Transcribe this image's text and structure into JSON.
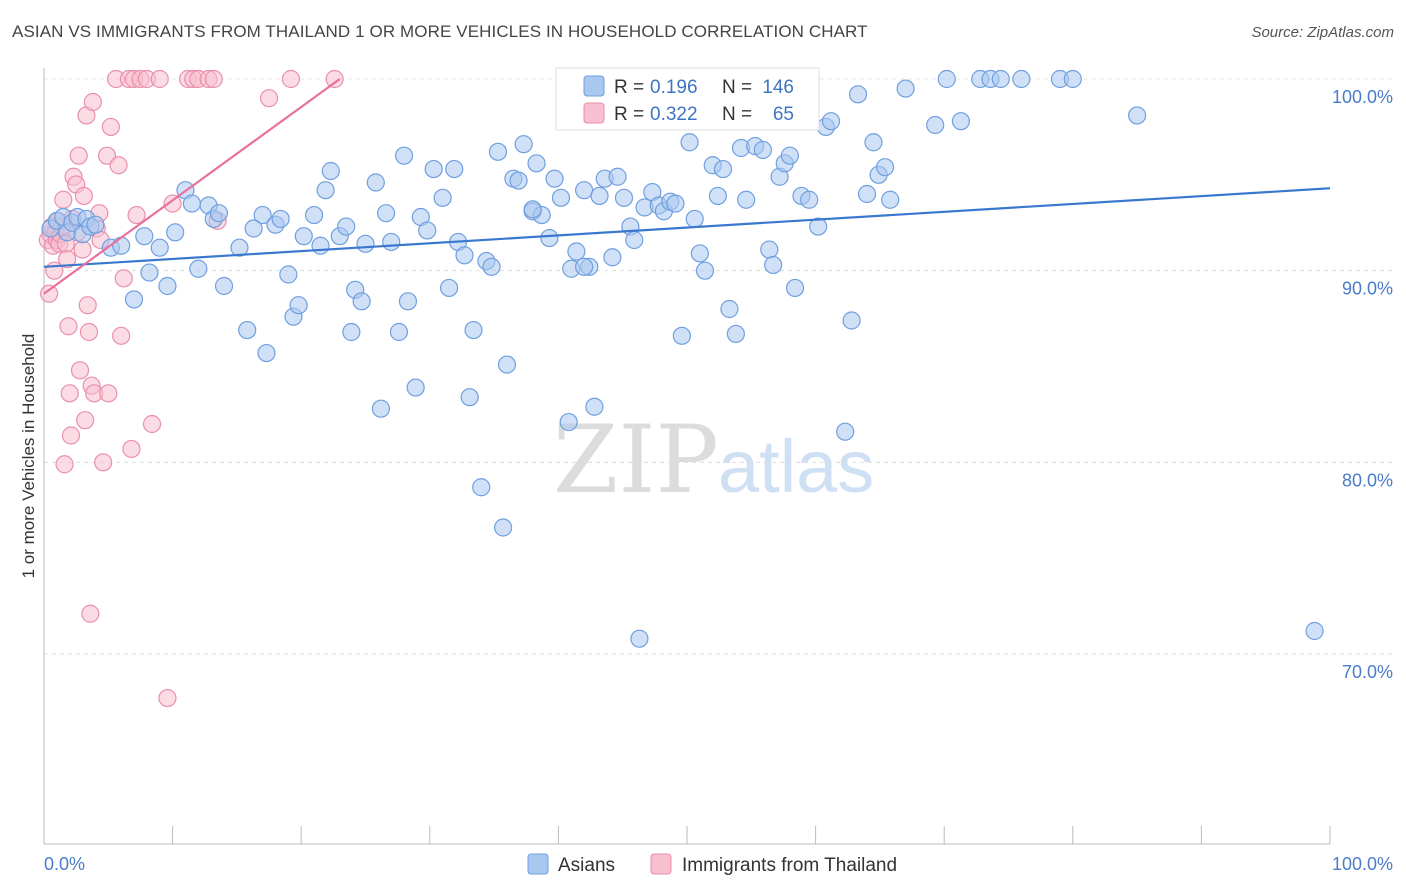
{
  "title": "ASIAN VS IMMIGRANTS FROM THAILAND 1 OR MORE VEHICLES IN HOUSEHOLD CORRELATION CHART",
  "source": "Source: ZipAtlas.com",
  "watermark": {
    "zip": "ZIP",
    "atlas": "atlas"
  },
  "colors": {
    "asian_fill": "#a9c8f0",
    "asian_stroke": "#6f9fdf",
    "asian_line": "#3a78cf",
    "thai_fill": "#f7bfd0",
    "thai_stroke": "#ea8fac",
    "thai_line": "#e8709a",
    "grid": "#dddddd",
    "axis_text": "#4a7cc9"
  },
  "legend": {
    "r_label": "R =",
    "n_label": "N =",
    "asian": {
      "r": "0.196",
      "n": "146"
    },
    "thai": {
      "r": "0.322",
      "n": "65"
    }
  },
  "chart_data": {
    "type": "scatter",
    "xlabel": "",
    "ylabel": "1 or more Vehicles in Household",
    "xlim": [
      0,
      100
    ],
    "ylim": [
      60,
      100.5
    ],
    "x_tick_labels": [
      "0.0%",
      "100.0%"
    ],
    "y_ticks": [
      70,
      80,
      90,
      100
    ],
    "y_tick_labels": [
      "70.0%",
      "80.0%",
      "90.0%",
      "100.0%"
    ],
    "series": [
      {
        "name": "Asians",
        "trend": {
          "x": [
            0,
            100
          ],
          "y": [
            90.2,
            94.3
          ]
        },
        "points": [
          [
            0.5,
            92.2
          ],
          [
            1.0,
            92.6
          ],
          [
            1.5,
            92.8
          ],
          [
            1.8,
            92.0
          ],
          [
            2.2,
            92.5
          ],
          [
            2.6,
            92.8
          ],
          [
            3.0,
            91.9
          ],
          [
            3.3,
            92.7
          ],
          [
            3.6,
            92.3
          ],
          [
            4.0,
            92.4
          ],
          [
            5.2,
            91.2
          ],
          [
            6.0,
            91.3
          ],
          [
            7.0,
            88.5
          ],
          [
            7.8,
            91.8
          ],
          [
            8.2,
            89.9
          ],
          [
            9.0,
            91.2
          ],
          [
            9.6,
            89.2
          ],
          [
            10.2,
            92.0
          ],
          [
            11.0,
            94.2
          ],
          [
            11.5,
            93.5
          ],
          [
            12.0,
            90.1
          ],
          [
            12.8,
            93.4
          ],
          [
            13.2,
            92.7
          ],
          [
            13.6,
            93.0
          ],
          [
            14.0,
            89.2
          ],
          [
            15.2,
            91.2
          ],
          [
            15.8,
            86.9
          ],
          [
            16.3,
            92.2
          ],
          [
            17.0,
            92.9
          ],
          [
            17.3,
            85.7
          ],
          [
            18.0,
            92.4
          ],
          [
            18.4,
            92.7
          ],
          [
            19.0,
            89.8
          ],
          [
            19.4,
            87.6
          ],
          [
            19.8,
            88.2
          ],
          [
            20.2,
            91.8
          ],
          [
            21.0,
            92.9
          ],
          [
            21.5,
            91.3
          ],
          [
            21.9,
            94.2
          ],
          [
            22.3,
            95.2
          ],
          [
            23.0,
            91.8
          ],
          [
            23.5,
            92.3
          ],
          [
            23.9,
            86.8
          ],
          [
            24.2,
            89.0
          ],
          [
            24.7,
            88.4
          ],
          [
            25.0,
            91.4
          ],
          [
            25.8,
            94.6
          ],
          [
            26.2,
            82.8
          ],
          [
            26.6,
            93.0
          ],
          [
            27.0,
            91.5
          ],
          [
            27.6,
            86.8
          ],
          [
            28.0,
            96.0
          ],
          [
            28.3,
            88.4
          ],
          [
            28.9,
            83.9
          ],
          [
            29.3,
            92.8
          ],
          [
            29.8,
            92.1
          ],
          [
            30.3,
            95.3
          ],
          [
            31.0,
            93.8
          ],
          [
            31.5,
            89.1
          ],
          [
            31.9,
            95.3
          ],
          [
            32.2,
            91.5
          ],
          [
            32.7,
            90.8
          ],
          [
            33.1,
            83.4
          ],
          [
            33.4,
            86.9
          ],
          [
            34.0,
            78.7
          ],
          [
            34.4,
            90.5
          ],
          [
            34.8,
            90.2
          ],
          [
            35.3,
            96.2
          ],
          [
            35.7,
            76.6
          ],
          [
            36.0,
            85.1
          ],
          [
            36.5,
            94.8
          ],
          [
            36.9,
            94.7
          ],
          [
            37.3,
            96.6
          ],
          [
            38.0,
            93.1
          ],
          [
            38.3,
            95.6
          ],
          [
            38.7,
            92.9
          ],
          [
            39.3,
            91.7
          ],
          [
            39.7,
            94.8
          ],
          [
            40.2,
            93.8
          ],
          [
            40.8,
            82.1
          ],
          [
            41.0,
            90.1
          ],
          [
            41.4,
            91.0
          ],
          [
            42.0,
            94.2
          ],
          [
            42.4,
            90.2
          ],
          [
            42.8,
            82.9
          ],
          [
            43.2,
            93.9
          ],
          [
            43.6,
            94.8
          ],
          [
            44.2,
            90.7
          ],
          [
            44.6,
            94.9
          ],
          [
            45.1,
            93.8
          ],
          [
            45.6,
            92.3
          ],
          [
            45.9,
            91.6
          ],
          [
            46.3,
            70.8
          ],
          [
            46.7,
            93.3
          ],
          [
            47.3,
            94.1
          ],
          [
            47.8,
            93.4
          ],
          [
            48.2,
            93.1
          ],
          [
            48.7,
            93.6
          ],
          [
            49.1,
            93.5
          ],
          [
            49.6,
            86.6
          ],
          [
            50.2,
            96.7
          ],
          [
            50.6,
            92.7
          ],
          [
            51.0,
            90.9
          ],
          [
            51.4,
            90.0
          ],
          [
            52.0,
            95.5
          ],
          [
            52.4,
            93.9
          ],
          [
            52.8,
            95.3
          ],
          [
            53.3,
            88.0
          ],
          [
            53.8,
            86.7
          ],
          [
            54.2,
            96.4
          ],
          [
            54.6,
            93.7
          ],
          [
            55.3,
            96.5
          ],
          [
            55.9,
            96.3
          ],
          [
            56.4,
            91.1
          ],
          [
            56.7,
            90.3
          ],
          [
            57.2,
            94.9
          ],
          [
            57.6,
            95.6
          ],
          [
            58.0,
            96.0
          ],
          [
            58.4,
            89.1
          ],
          [
            58.9,
            93.9
          ],
          [
            59.5,
            93.7
          ],
          [
            60.2,
            92.3
          ],
          [
            60.8,
            97.5
          ],
          [
            61.2,
            97.8
          ],
          [
            62.3,
            81.6
          ],
          [
            62.8,
            87.4
          ],
          [
            63.3,
            99.2
          ],
          [
            64.0,
            94.0
          ],
          [
            64.5,
            96.7
          ],
          [
            64.9,
            95.0
          ],
          [
            65.4,
            95.4
          ],
          [
            65.8,
            93.7
          ],
          [
            67.0,
            99.5
          ],
          [
            69.3,
            97.6
          ],
          [
            70.2,
            100.0
          ],
          [
            71.3,
            97.8
          ],
          [
            72.8,
            100.0
          ],
          [
            73.6,
            100.0
          ],
          [
            74.4,
            100.0
          ],
          [
            76.0,
            100.0
          ],
          [
            79.0,
            100.0
          ],
          [
            80.0,
            100.0
          ],
          [
            85.0,
            98.1
          ],
          [
            98.8,
            71.2
          ],
          [
            42.0,
            90.2
          ],
          [
            38.0,
            93.2
          ]
        ]
      },
      {
        "name": "Immigrants from Thailand",
        "trend": {
          "x": [
            0,
            23
          ],
          "y": [
            88.8,
            100.0
          ]
        },
        "points": [
          [
            0.3,
            91.6
          ],
          [
            0.5,
            91.9
          ],
          [
            0.6,
            92.3
          ],
          [
            0.7,
            91.3
          ],
          [
            0.8,
            90.0
          ],
          [
            0.9,
            92.0
          ],
          [
            1.0,
            91.6
          ],
          [
            1.1,
            92.6
          ],
          [
            1.2,
            91.4
          ],
          [
            1.3,
            91.9
          ],
          [
            1.4,
            92.3
          ],
          [
            1.5,
            93.7
          ],
          [
            1.6,
            79.9
          ],
          [
            1.7,
            91.4
          ],
          [
            1.8,
            90.6
          ],
          [
            1.9,
            87.1
          ],
          [
            2.0,
            83.6
          ],
          [
            2.1,
            81.4
          ],
          [
            2.2,
            92.7
          ],
          [
            2.3,
            94.9
          ],
          [
            2.5,
            94.5
          ],
          [
            2.6,
            92.0
          ],
          [
            2.7,
            96.0
          ],
          [
            2.8,
            84.8
          ],
          [
            3.0,
            91.1
          ],
          [
            3.1,
            93.9
          ],
          [
            3.2,
            82.2
          ],
          [
            3.3,
            98.1
          ],
          [
            3.4,
            88.2
          ],
          [
            3.5,
            86.8
          ],
          [
            3.6,
            72.1
          ],
          [
            3.7,
            84.0
          ],
          [
            3.8,
            98.8
          ],
          [
            3.9,
            83.6
          ],
          [
            4.1,
            92.2
          ],
          [
            4.3,
            93.0
          ],
          [
            4.4,
            91.6
          ],
          [
            4.6,
            80.0
          ],
          [
            4.9,
            96.0
          ],
          [
            5.0,
            83.6
          ],
          [
            5.2,
            97.5
          ],
          [
            5.6,
            100.0
          ],
          [
            5.8,
            95.5
          ],
          [
            6.0,
            86.6
          ],
          [
            6.2,
            89.6
          ],
          [
            6.6,
            100.0
          ],
          [
            6.8,
            80.7
          ],
          [
            7.0,
            100.0
          ],
          [
            7.2,
            92.9
          ],
          [
            7.5,
            100.0
          ],
          [
            8.0,
            100.0
          ],
          [
            8.4,
            82.0
          ],
          [
            9.0,
            100.0
          ],
          [
            9.6,
            67.7
          ],
          [
            10.0,
            93.5
          ],
          [
            11.2,
            100.0
          ],
          [
            11.6,
            100.0
          ],
          [
            12.0,
            100.0
          ],
          [
            12.8,
            100.0
          ],
          [
            13.2,
            100.0
          ],
          [
            13.5,
            92.6
          ],
          [
            17.5,
            99.0
          ],
          [
            19.2,
            100.0
          ],
          [
            22.6,
            100.0
          ],
          [
            0.4,
            88.8
          ]
        ]
      }
    ]
  },
  "bottom_legend": {
    "asian_label": "Asians",
    "thai_label": "Immigrants from Thailand"
  }
}
